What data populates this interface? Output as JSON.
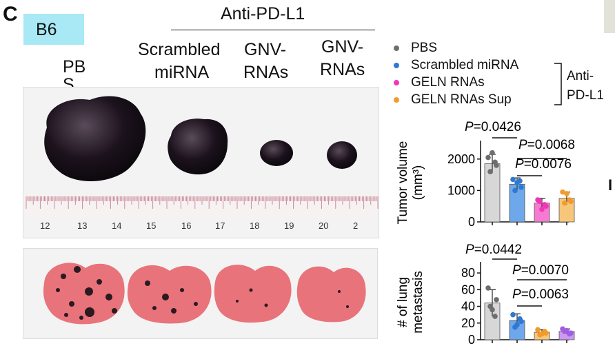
{
  "figure": {
    "panel_label": "C",
    "strain_badge": "B6",
    "treatment_header": "Anti-PD-L1",
    "group_labels": {
      "pbs": "PB\nS",
      "scrambled_line1": "Scrambled",
      "scrambled_line2": "miRNA",
      "gnv1_line1": "GNV-",
      "gnv1_line2": "RNAs",
      "gnv2_line1": "GNV-",
      "gnv2_line2": "RNAs"
    },
    "ruler_ticks": [
      "12",
      "13",
      "14",
      "15",
      "16",
      "17",
      "18",
      "19",
      "20",
      "2"
    ],
    "legend": {
      "items": [
        {
          "label": "PBS",
          "color": "#6e6e6e"
        },
        {
          "label": "Scrambled miRNA",
          "color": "#2f78d4"
        },
        {
          "label": "GELN RNAs",
          "color": "#f037b4"
        },
        {
          "label": "GELN RNAs Sup",
          "color": "#f39a2c"
        }
      ],
      "bracket_label_line1": "Anti-",
      "bracket_label_line2": "PD-L1"
    },
    "right_edge_letter": "I"
  },
  "chart_data": [
    {
      "type": "bar",
      "ylabel_line1": "Tumor volume",
      "ylabel_line2": "(mm³)",
      "ylim": [
        0,
        2500
      ],
      "yticks": [
        "0",
        "1000",
        "2000"
      ],
      "categories": [
        "PBS",
        "Scrambled miRNA",
        "GELN RNAs",
        "GELN RNAs Sup"
      ],
      "values": [
        1850,
        1200,
        600,
        750
      ],
      "errors": [
        300,
        200,
        150,
        200
      ],
      "points": [
        [
          2050,
          1800,
          1600,
          1900,
          2200
        ],
        [
          1350,
          1100,
          1000,
          1300,
          1250
        ],
        [
          700,
          500,
          650,
          550,
          400
        ],
        [
          950,
          650,
          600,
          700,
          900
        ]
      ],
      "bar_colors": [
        "#d7d7d7",
        "#6ea8ea",
        "#f57bd0",
        "#f6c77a"
      ],
      "point_colors": [
        "#6e6e6e",
        "#2f78d4",
        "#f037b4",
        "#f39a2c"
      ],
      "pvalues": [
        "P=0.0426",
        "P=0.0068",
        "P=0.0076"
      ]
    },
    {
      "type": "bar",
      "ylabel_line1": "# of lung",
      "ylabel_line2": "metastasis",
      "ylim": [
        0,
        90
      ],
      "yticks": [
        "0",
        "20",
        "40",
        "60",
        "80"
      ],
      "categories": [
        "PBS",
        "Scrambled miRNA",
        "GELN RNAs",
        "GELN RNAs Sup"
      ],
      "values": [
        44,
        23,
        9,
        10
      ],
      "errors": [
        16,
        8,
        3,
        3
      ],
      "points": [
        [
          62,
          48,
          40,
          28,
          36
        ],
        [
          30,
          22,
          15,
          25,
          18
        ],
        [
          12,
          8,
          6,
          10,
          7
        ],
        [
          13,
          8,
          10,
          7,
          11
        ]
      ],
      "bar_colors": [
        "#d7d7d7",
        "#6ea8ea",
        "#f6c77a",
        "#cc99f0"
      ],
      "point_colors": [
        "#6e6e6e",
        "#2f78d4",
        "#f39a2c",
        "#a05ee0"
      ],
      "pvalues": [
        "P=0.0442",
        "P=0.0070",
        "P=0.0063"
      ]
    }
  ]
}
